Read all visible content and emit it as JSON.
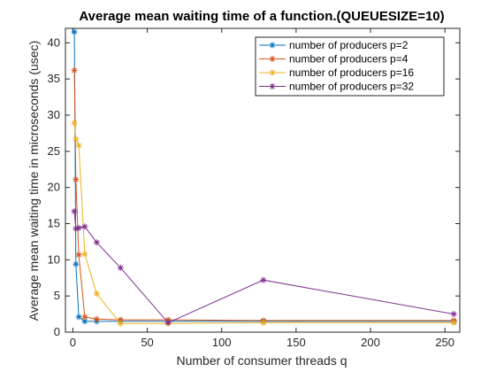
{
  "chart_data": {
    "type": "line",
    "title": "Average mean waiting time of a function.(QUEUESIZE=10)",
    "xlabel": "Number of consumer threads q",
    "ylabel": "Average mean waiting time in microseconds (usec)",
    "xlim": [
      -5,
      260
    ],
    "ylim": [
      0,
      42
    ],
    "xticks": [
      0,
      50,
      100,
      150,
      200,
      250
    ],
    "yticks": [
      0,
      5,
      10,
      15,
      20,
      25,
      30,
      35,
      40
    ],
    "grid": false,
    "legend_position": "top-right",
    "marker": "asterisk",
    "series": [
      {
        "name": "number of producers p=2",
        "color": "#0072BD",
        "x": [
          1,
          2,
          4,
          8,
          16,
          32,
          64,
          128,
          256
        ],
        "y": [
          41.5,
          9.4,
          2.1,
          1.5,
          1.5,
          1.5,
          1.5,
          1.5,
          1.5
        ]
      },
      {
        "name": "number of producers p=4",
        "color": "#D95319",
        "x": [
          1,
          2,
          4,
          8,
          16,
          32,
          64,
          128,
          256
        ],
        "y": [
          36.2,
          21.1,
          10.7,
          2.1,
          1.8,
          1.7,
          1.7,
          1.6,
          1.6
        ]
      },
      {
        "name": "number of producers p=16",
        "color": "#EDB120",
        "x": [
          1,
          2,
          4,
          8,
          16,
          32,
          64,
          128,
          256
        ],
        "y": [
          28.9,
          26.7,
          25.8,
          10.8,
          5.3,
          1.2,
          1.2,
          1.3,
          1.3
        ]
      },
      {
        "name": "number of producers p=32",
        "color": "#7E2F8E",
        "x": [
          1,
          2,
          4,
          8,
          16,
          32,
          64,
          128,
          256
        ],
        "y": [
          16.7,
          14.3,
          14.4,
          14.6,
          12.4,
          8.9,
          1.3,
          7.2,
          2.5
        ]
      }
    ]
  }
}
